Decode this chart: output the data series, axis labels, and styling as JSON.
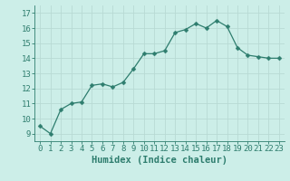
{
  "x": [
    0,
    1,
    2,
    3,
    4,
    5,
    6,
    7,
    8,
    9,
    10,
    11,
    12,
    13,
    14,
    15,
    16,
    17,
    18,
    19,
    20,
    21,
    22,
    23
  ],
  "y": [
    9.5,
    9.0,
    10.6,
    11.0,
    11.1,
    12.2,
    12.3,
    12.1,
    12.4,
    13.3,
    14.3,
    14.3,
    14.5,
    15.7,
    15.9,
    16.3,
    16.0,
    16.5,
    16.1,
    14.7,
    14.2,
    14.1,
    14.0,
    14.0
  ],
  "line_color": "#2e7d6e",
  "marker": "D",
  "marker_size": 2.5,
  "bg_color": "#cceee8",
  "grid_color": "#b8dad4",
  "xlabel": "Humidex (Indice chaleur)",
  "xlim": [
    -0.5,
    23.5
  ],
  "ylim": [
    8.5,
    17.5
  ],
  "yticks": [
    9,
    10,
    11,
    12,
    13,
    14,
    15,
    16,
    17
  ],
  "xticks": [
    0,
    1,
    2,
    3,
    4,
    5,
    6,
    7,
    8,
    9,
    10,
    11,
    12,
    13,
    14,
    15,
    16,
    17,
    18,
    19,
    20,
    21,
    22,
    23
  ],
  "tick_label_size": 6.5,
  "xlabel_size": 7.5,
  "axis_color": "#2e7d6e",
  "line_width": 0.9
}
